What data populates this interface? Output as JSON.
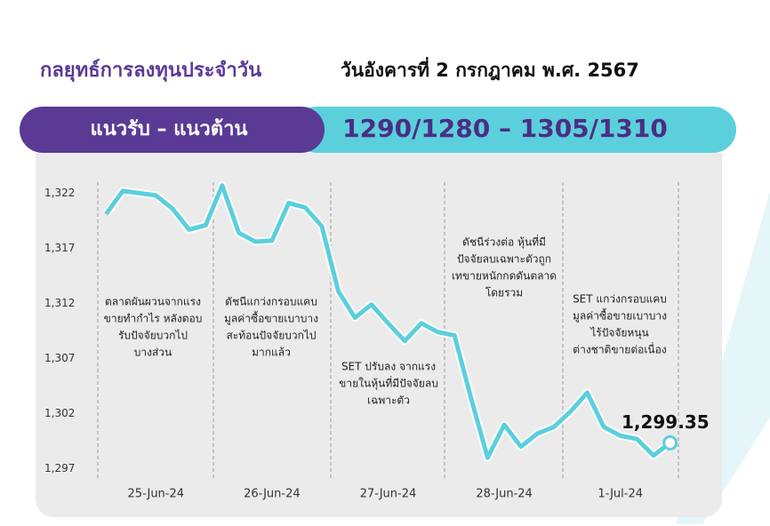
{
  "header": {
    "title": "กลยุทธ์การลงทุนประจำวัน",
    "date": "วันอังคารที่ 2 กรกฎาคม พ.ศ. 2567"
  },
  "banner": {
    "label": "แนวรับ – แนวต้าน",
    "levels": "1290/1280 – 1305/1310"
  },
  "chart_data": {
    "type": "line",
    "color": "#5ccfdc",
    "categories": [
      null,
      null,
      null,
      "25-Jun-24",
      null,
      null,
      null,
      null,
      null,
      null,
      "26-Jun-24",
      null,
      null,
      null,
      null,
      null,
      null,
      "27-Jun-24",
      null,
      null,
      null,
      null,
      null,
      null,
      "28-Jun-24",
      null,
      null,
      null,
      null,
      null,
      null,
      "1-Jul-24",
      null,
      null,
      null
    ],
    "values": [
      1320.1,
      1322.2,
      1322,
      1321.8,
      1320.6,
      1318.7,
      1319.1,
      1322.7,
      1318.4,
      1317.6,
      1317.7,
      1321.1,
      1320.7,
      1319.0,
      1313.1,
      1310.7,
      1311.9,
      1310.2,
      1308.6,
      1310.2,
      1309.4,
      1309.1,
      1303.4,
      1298.0,
      1301.0,
      1299.0,
      1300.2,
      1300.8,
      1302.2,
      1303.9,
      1300.8,
      1300.0,
      1299.7,
      1298.2,
      1299.35
    ],
    "value_labels": [
      null,
      null,
      null,
      null,
      null,
      null,
      null,
      null,
      null,
      null,
      null,
      null,
      null,
      null,
      null,
      null,
      null,
      null,
      null,
      null,
      null,
      null,
      null,
      null,
      null,
      null,
      null,
      null,
      null,
      null,
      null,
      null,
      null,
      null,
      "1,299.35"
    ],
    "ylim": [
      1296,
      1323
    ],
    "yticks": [
      {
        "value": 1297,
        "label": "1,297"
      },
      {
        "value": 1302,
        "label": "1,302"
      },
      {
        "value": 1307,
        "label": "1,307"
      },
      {
        "value": 1312,
        "label": "1,312"
      },
      {
        "value": 1317,
        "label": "1,317"
      },
      {
        "value": 1322,
        "label": "1,322"
      }
    ],
    "annotations": [
      [
        "ตลาดผันผวนจากแรง",
        "ขายทำกำไร หลังตอบ",
        "รับปัจจัยบวกไป",
        "บางส่วน"
      ],
      [
        "ดัชนีแกว่งกรอบแคบ",
        "มูลค่าซื้อขายเบาบาง",
        "สะท้อนปัจจัยบวกไป",
        "มากแล้ว"
      ],
      [
        "SET ปรับลง จากแรง",
        "ขายในหุ้นที่มีปัจจัยลบ",
        "เฉพาะตัว"
      ],
      [
        "ดัชนีร่วงต่อ หุ้นที่มี",
        "ปัจจัยลบเฉพาะตัวถูก",
        "เทขายหนักกดดันตลาด",
        "โดยรวม"
      ],
      [
        "SET แกว่งกรอบแคบ",
        "มูลค่าซื้อขายเบาบาง",
        "ไร้ปัจจัยหนุน",
        "ต่างชาติขายต่อเนื่อง"
      ]
    ]
  }
}
